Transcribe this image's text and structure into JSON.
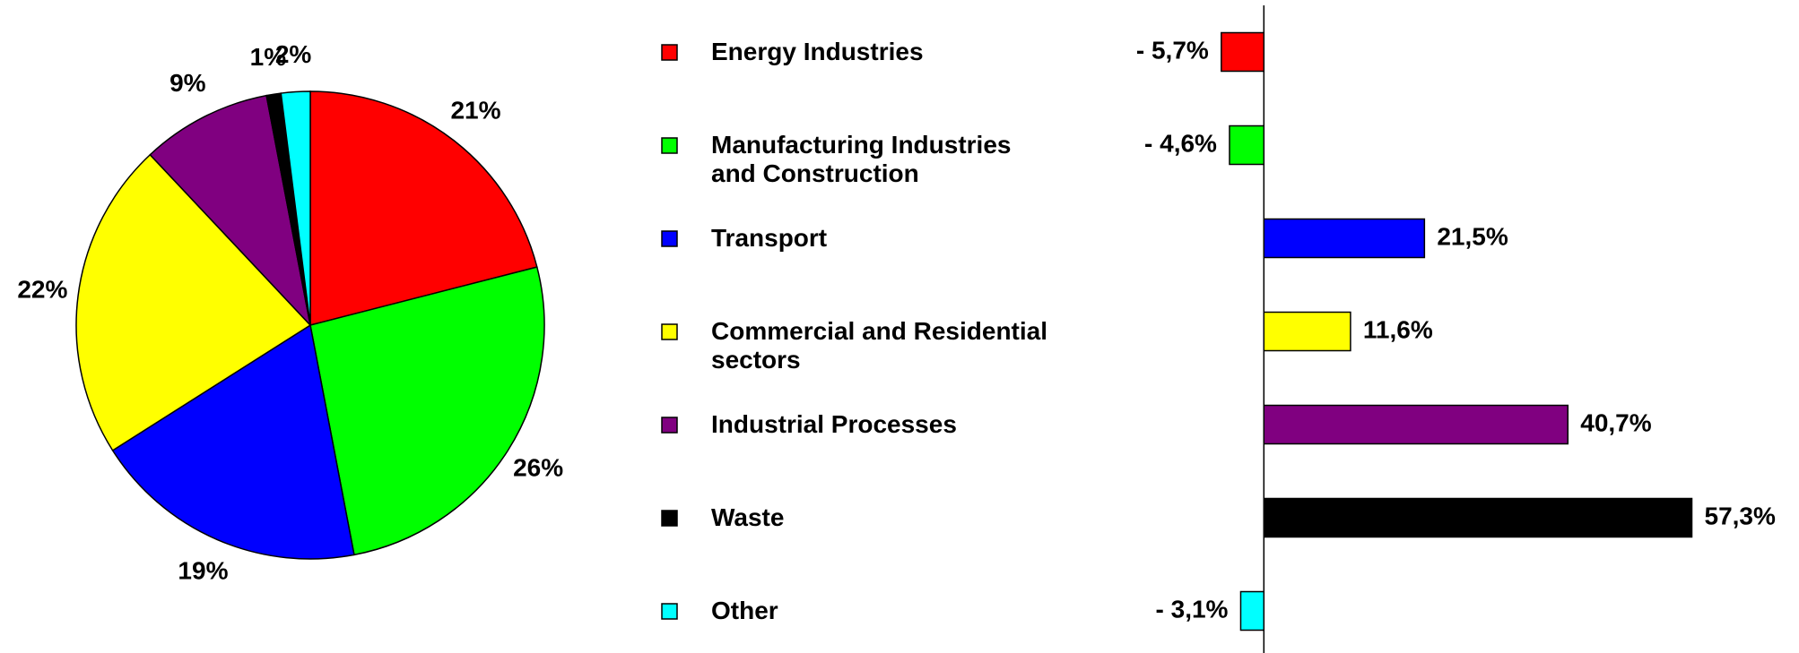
{
  "chart_data": [
    {
      "type": "pie",
      "values": [
        21,
        26,
        19,
        22,
        9,
        1,
        2
      ],
      "value_labels": [
        "21%",
        "26%",
        "19%",
        "22%",
        "9%",
        "1%",
        "2%"
      ],
      "colors": [
        "#ff0000",
        "#00ff00",
        "#0000ff",
        "#ffff00",
        "#800080",
        "#000000",
        "#00ffff"
      ]
    },
    {
      "type": "bar",
      "orientation": "horizontal",
      "categories": [
        "Energy Industries",
        "Manufacturing Industries\nand Construction",
        "Transport",
        "Commercial and Residential\nsectors",
        "Industrial Processes",
        "Waste",
        "Other"
      ],
      "values": [
        -5.7,
        -4.6,
        21.5,
        11.6,
        40.7,
        57.3,
        -3.1
      ],
      "value_labels": [
        "- 5,7%",
        "- 4,6%",
        "21,5%",
        "11,6%",
        "40,7%",
        "57,3%",
        "- 3,1%"
      ],
      "colors": [
        "#ff0000",
        "#00ff00",
        "#0000ff",
        "#ffff00",
        "#800080",
        "#000000",
        "#00ffff"
      ],
      "xlim": [
        -10,
        60
      ]
    }
  ]
}
